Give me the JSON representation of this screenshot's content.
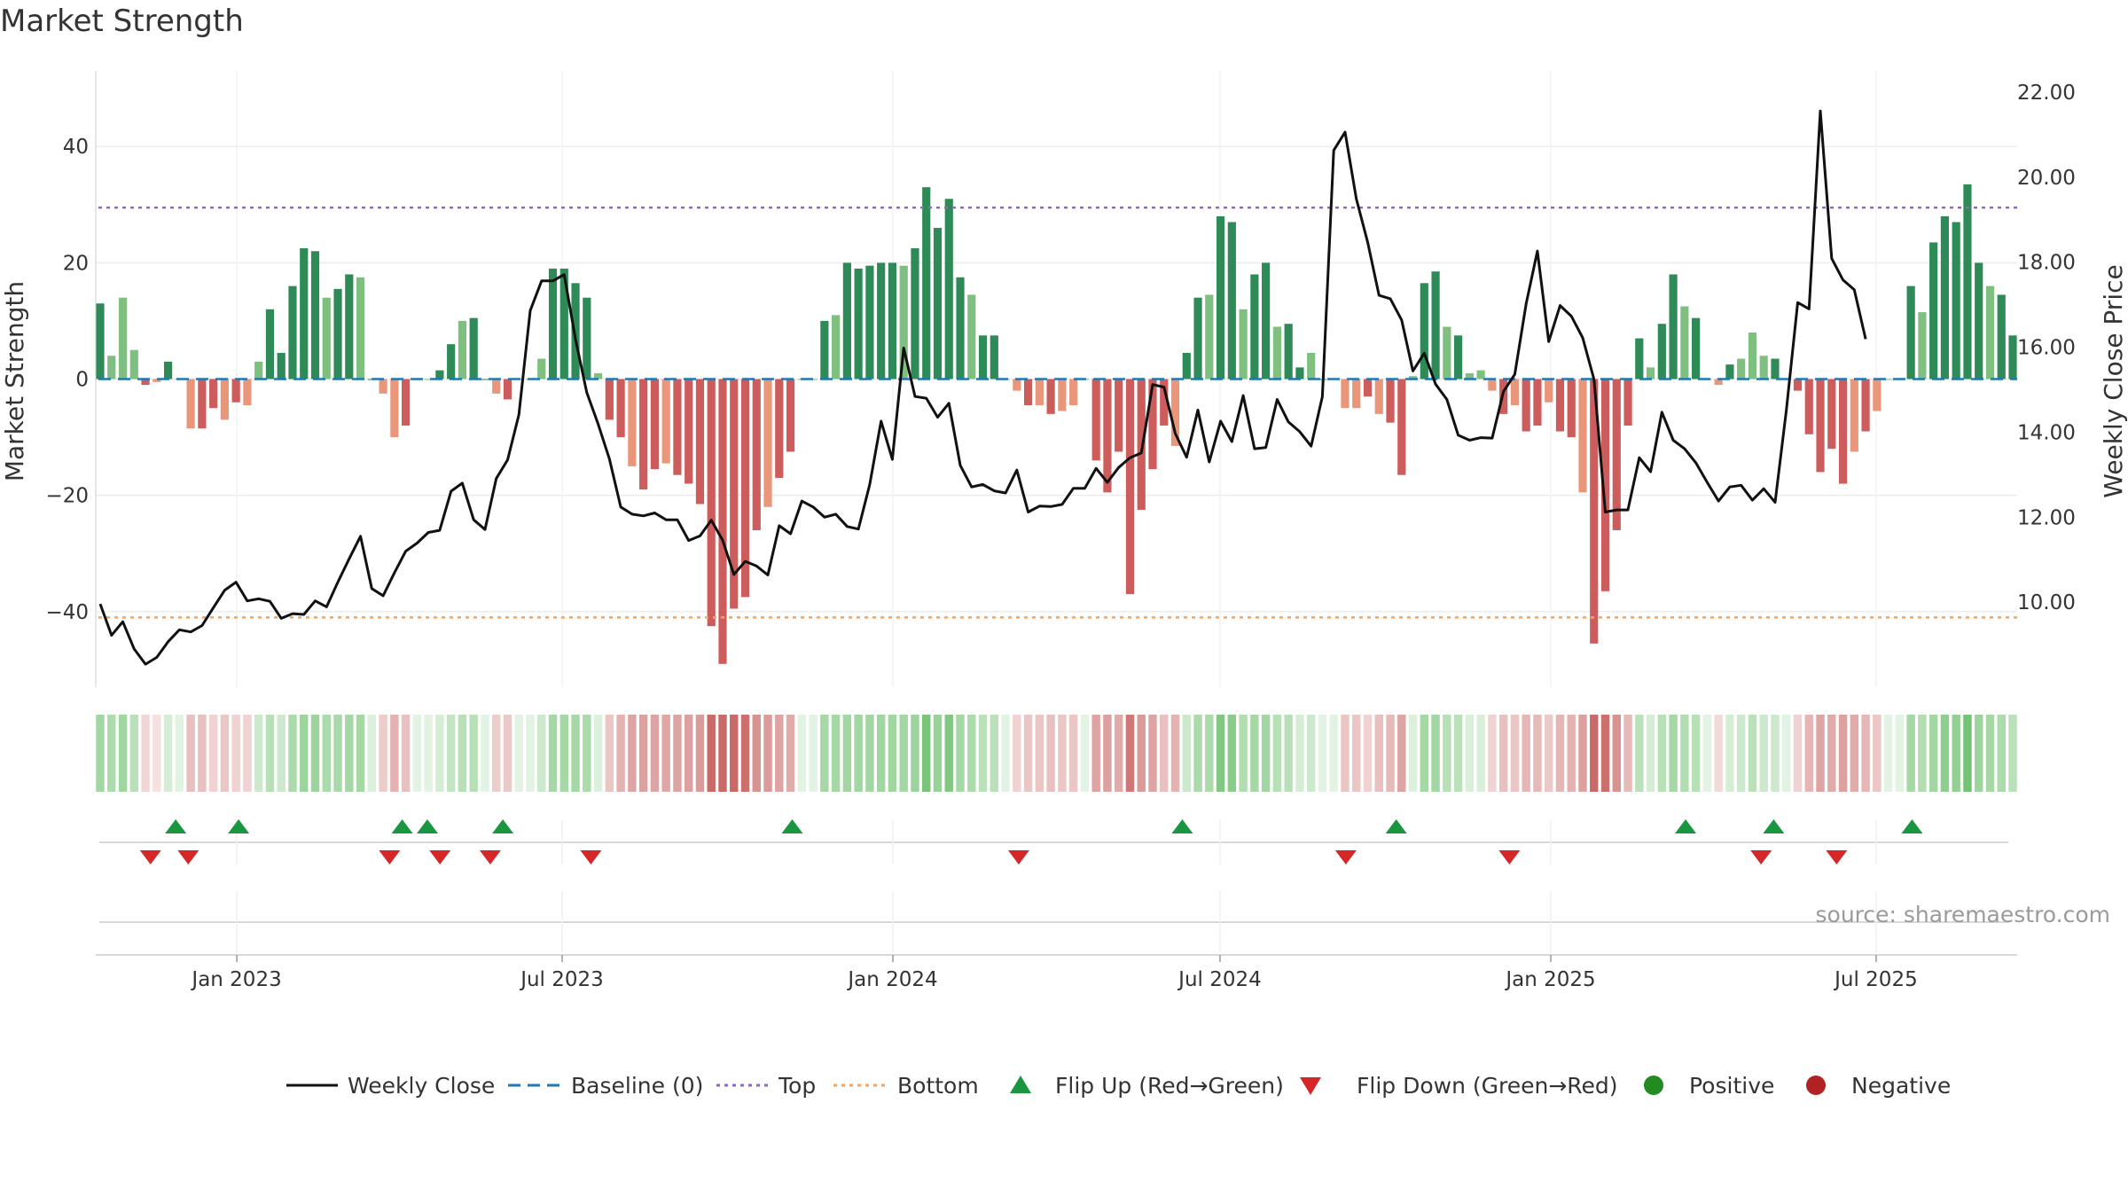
{
  "title": "Market Strength",
  "source": "source: sharemaestro.com",
  "colors": {
    "pos_dark": "#2e8b57",
    "pos_light": "#7fbf7f",
    "neg_dark": "#cd5c5c",
    "neg_light": "#e9967a",
    "line": "#111111",
    "baseline": "#1f77b4",
    "top": "#9467bd",
    "bottom": "#f4a460",
    "flip_up": "#1a9641",
    "flip_down": "#d62728",
    "positive": "#228b22",
    "negative": "#b22222"
  },
  "chart_data": {
    "type": "bar+line",
    "title": "Market Strength",
    "ylabel": "Market Strength",
    "y2label": "Weekly Close Price",
    "ylim": [
      -53,
      53
    ],
    "y2lim": [
      8.0,
      22.5
    ],
    "yticks": [
      40,
      20,
      0,
      -20,
      -40
    ],
    "yticklabels": [
      "40",
      "20",
      "0",
      "−20",
      "−40"
    ],
    "y2ticks": [
      22,
      20,
      18,
      16,
      14,
      12,
      10
    ],
    "y2ticklabels": [
      "22.00",
      "20.00",
      "18.00",
      "16.00",
      "14.00",
      "12.00",
      "10.00"
    ],
    "x_range": [
      "2022-10-17",
      "2025-09-15"
    ],
    "xticks": [
      "2023-01-01",
      "2023-07-01",
      "2024-01-01",
      "2024-07-01",
      "2025-01-01",
      "2025-07-01"
    ],
    "xticklabels": [
      "Jan 2023",
      "Jul 2023",
      "Jan 2024",
      "Jul 2024",
      "Jan 2025",
      "Jul 2025"
    ],
    "top_threshold": 29.5,
    "bottom_threshold": -41,
    "strength": [
      13,
      4,
      14,
      5,
      -1,
      -0.5,
      3,
      0,
      -8.5,
      -8.5,
      -5,
      -7,
      -4,
      -4.5,
      3,
      12,
      4.5,
      16,
      22.5,
      22,
      14,
      15.5,
      18,
      17.5,
      0,
      -2.5,
      -10,
      -8,
      0,
      0,
      1.5,
      6,
      10,
      10.5,
      0,
      -2.5,
      -3.5,
      0,
      0,
      3.5,
      19,
      19,
      16.5,
      14,
      1,
      -7,
      -10,
      -15,
      -19,
      -15.5,
      -14.5,
      -16.5,
      -18,
      -21.5,
      -42.5,
      -49,
      -39.5,
      -37.5,
      -26,
      -22,
      -17,
      -12.5,
      0,
      0,
      10,
      11,
      20,
      19,
      19.5,
      20,
      20,
      19.5,
      22.5,
      33,
      26,
      31,
      17.5,
      14.5,
      7.5,
      7.5,
      0,
      -2,
      -4.5,
      -4.5,
      -6,
      -5.5,
      -4.5,
      0,
      -14,
      -19.5,
      -12.5,
      -37,
      -22.5,
      -15.5,
      -8,
      -11.5,
      4.5,
      14,
      14.5,
      28,
      27,
      12,
      18,
      20,
      9,
      9.5,
      2,
      4.5,
      0,
      0,
      -5,
      -5,
      -3,
      -6,
      -7.5,
      -16.5,
      0.5,
      16.5,
      18.5,
      9,
      7.5,
      1,
      1.5,
      -2,
      -6,
      -4.5,
      -9,
      -8,
      -4,
      -9,
      -10,
      -19.5,
      -45.5,
      -36.5,
      -26,
      -8,
      7,
      2,
      9.5,
      18,
      12.5,
      10.5,
      0,
      -1,
      2.5,
      3.5,
      8,
      4,
      3.5,
      0,
      -2,
      -9.5,
      -16,
      -12,
      -18,
      -12.5,
      -9,
      -5.5,
      0,
      0,
      16,
      11.5,
      23.5,
      28,
      27,
      33.5,
      20,
      16,
      14.5,
      7.5
    ],
    "weekly_close": [
      9.96,
      9.22,
      9.54,
      8.9,
      8.54,
      8.7,
      9.07,
      9.35,
      9.3,
      9.45,
      9.87,
      10.28,
      10.47,
      10.03,
      10.08,
      10.02,
      9.62,
      9.73,
      9.71,
      10.03,
      9.89,
      10.47,
      11.02,
      11.55,
      10.32,
      10.15,
      10.69,
      11.2,
      11.39,
      11.64,
      11.69,
      12.61,
      12.8,
      11.94,
      11.71,
      12.91,
      13.35,
      14.41,
      16.86,
      17.56,
      17.56,
      17.71,
      16.18,
      14.93,
      14.19,
      13.37,
      12.24,
      12.07,
      12.03,
      12.1,
      11.94,
      11.94,
      11.45,
      11.56,
      11.93,
      11.46,
      10.65,
      10.96,
      10.85,
      10.64,
      11.8,
      11.61,
      12.38,
      12.24,
      12.0,
      12.07,
      11.78,
      11.72,
      12.77,
      14.26,
      13.36,
      15.98,
      14.84,
      14.8,
      14.35,
      14.68,
      13.22,
      12.71,
      12.77,
      12.62,
      12.57,
      13.11,
      12.12,
      12.26,
      12.25,
      12.3,
      12.68,
      12.68,
      13.15,
      12.82,
      13.17,
      13.4,
      13.51,
      15.12,
      15.06,
      13.97,
      13.41,
      14.52,
      13.3,
      14.26,
      13.78,
      14.86,
      13.61,
      13.64,
      14.77,
      14.24,
      14.01,
      13.67,
      14.84,
      20.63,
      21.06,
      19.49,
      18.47,
      17.22,
      17.14,
      16.64,
      15.44,
      15.86,
      15.13,
      14.77,
      13.93,
      13.81,
      13.87,
      13.86,
      14.96,
      15.36,
      17.02,
      18.26,
      16.13,
      16.98,
      16.73,
      16.22,
      15.24,
      12.12,
      12.17,
      12.17,
      13.4,
      13.07,
      14.47,
      13.81,
      13.61,
      13.28,
      12.82,
      12.38,
      12.71,
      12.75,
      12.4,
      12.67,
      12.35,
      14.52,
      17.05,
      16.9,
      21.56,
      18.09,
      17.58,
      17.35,
      16.19
    ]
  },
  "strip": {
    "opacity": [
      0.82,
      0.77,
      0.83,
      0.71,
      0.52,
      0.45,
      0.55,
      0.45,
      0.65,
      0.65,
      0.55,
      0.62,
      0.55,
      0.55,
      0.6,
      0.72,
      0.6,
      0.78,
      0.84,
      0.84,
      0.78,
      0.79,
      0.8,
      0.8,
      0.5,
      0.58,
      0.72,
      0.65,
      0.45,
      0.45,
      0.55,
      0.65,
      0.72,
      0.72,
      0.45,
      0.58,
      0.6,
      0.45,
      0.45,
      0.6,
      0.8,
      0.8,
      0.8,
      0.78,
      0.5,
      0.62,
      0.72,
      0.78,
      0.8,
      0.78,
      0.77,
      0.78,
      0.8,
      0.82,
      1.0,
      1.0,
      1.0,
      0.98,
      0.85,
      0.82,
      0.78,
      0.75,
      0.45,
      0.45,
      0.8,
      0.8,
      0.82,
      0.82,
      0.82,
      0.83,
      0.83,
      0.82,
      0.84,
      0.98,
      0.86,
      0.95,
      0.8,
      0.78,
      0.7,
      0.7,
      0.45,
      0.55,
      0.62,
      0.62,
      0.65,
      0.62,
      0.62,
      0.45,
      0.78,
      0.8,
      0.75,
      0.95,
      0.82,
      0.78,
      0.65,
      0.72,
      0.6,
      0.78,
      0.78,
      0.95,
      0.92,
      0.75,
      0.8,
      0.82,
      0.72,
      0.72,
      0.55,
      0.6,
      0.45,
      0.45,
      0.62,
      0.62,
      0.55,
      0.65,
      0.68,
      0.78,
      0.5,
      0.8,
      0.82,
      0.72,
      0.7,
      0.52,
      0.52,
      0.55,
      0.65,
      0.62,
      0.7,
      0.68,
      0.6,
      0.7,
      0.72,
      0.8,
      1.0,
      0.98,
      0.85,
      0.68,
      0.7,
      0.55,
      0.72,
      0.8,
      0.75,
      0.72,
      0.45,
      0.5,
      0.55,
      0.6,
      0.7,
      0.6,
      0.6,
      0.45,
      0.55,
      0.7,
      0.78,
      0.75,
      0.8,
      0.75,
      0.7,
      0.62,
      0.45,
      0.45,
      0.8,
      0.75,
      0.82,
      0.9,
      0.88,
      1.0,
      0.84,
      0.8,
      0.78,
      0.7
    ]
  },
  "flips": {
    "up_dates": [
      "2022-11-28",
      "2023-01-02",
      "2023-04-03",
      "2023-04-17",
      "2023-05-29",
      "2023-11-06",
      "2024-06-10",
      "2024-10-07",
      "2025-03-17",
      "2025-05-05",
      "2025-07-21"
    ],
    "down_dates": [
      "2022-11-14",
      "2022-12-05",
      "2023-03-27",
      "2023-04-24",
      "2023-05-22",
      "2023-07-17",
      "2024-03-11",
      "2024-09-09",
      "2024-12-09",
      "2025-04-28",
      "2025-06-09"
    ]
  },
  "legend": {
    "weekly_close": "Weekly Close",
    "baseline": "Baseline (0)",
    "top": "Top",
    "bottom": "Bottom",
    "flip_up": "Flip Up (Red→Green)",
    "flip_down": "Flip Down (Green→Red)",
    "positive": "Positive",
    "negative": "Negative"
  }
}
